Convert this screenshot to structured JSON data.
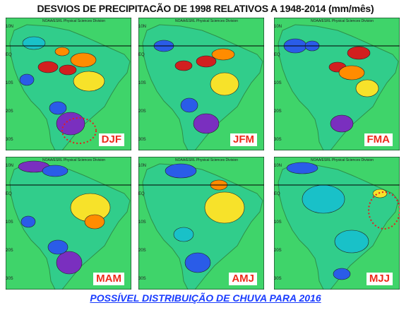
{
  "title": "DESVIOS DE PRECIPITACÃO  DE 1998  RELATIVOS A 1948-2014 (mm/mês)",
  "footer": "POSSÍVEL DISTRIBUIÇÃO DE CHUVA PARA 2016",
  "credit": "NOAA/ESRL Physical Sciences Division",
  "lat_ticks": [
    "10N",
    "EQ",
    "10S",
    "20S",
    "30S"
  ],
  "lon_ticks": [
    "80W",
    "70W",
    "60W",
    "50W",
    "40W",
    "35W"
  ],
  "colors": {
    "dry_strong": "#d21f1f",
    "dry": "#ff8c00",
    "dry_weak": "#f7e22a",
    "neutral": "#3fd46a",
    "wet_weak": "#19c1c8",
    "wet": "#2a5ce8",
    "wet_strong": "#7a2fbf",
    "label": "#ee2a1a",
    "footer": "#1a3cff"
  },
  "panels": [
    {
      "label": "DJF",
      "highlight": "south-east coast dotted circle"
    },
    {
      "label": "JFM"
    },
    {
      "label": "FMA"
    },
    {
      "label": "MAM"
    },
    {
      "label": "AMJ"
    },
    {
      "label": "MJJ",
      "highlight": "north-east coast dotted circle"
    }
  ]
}
